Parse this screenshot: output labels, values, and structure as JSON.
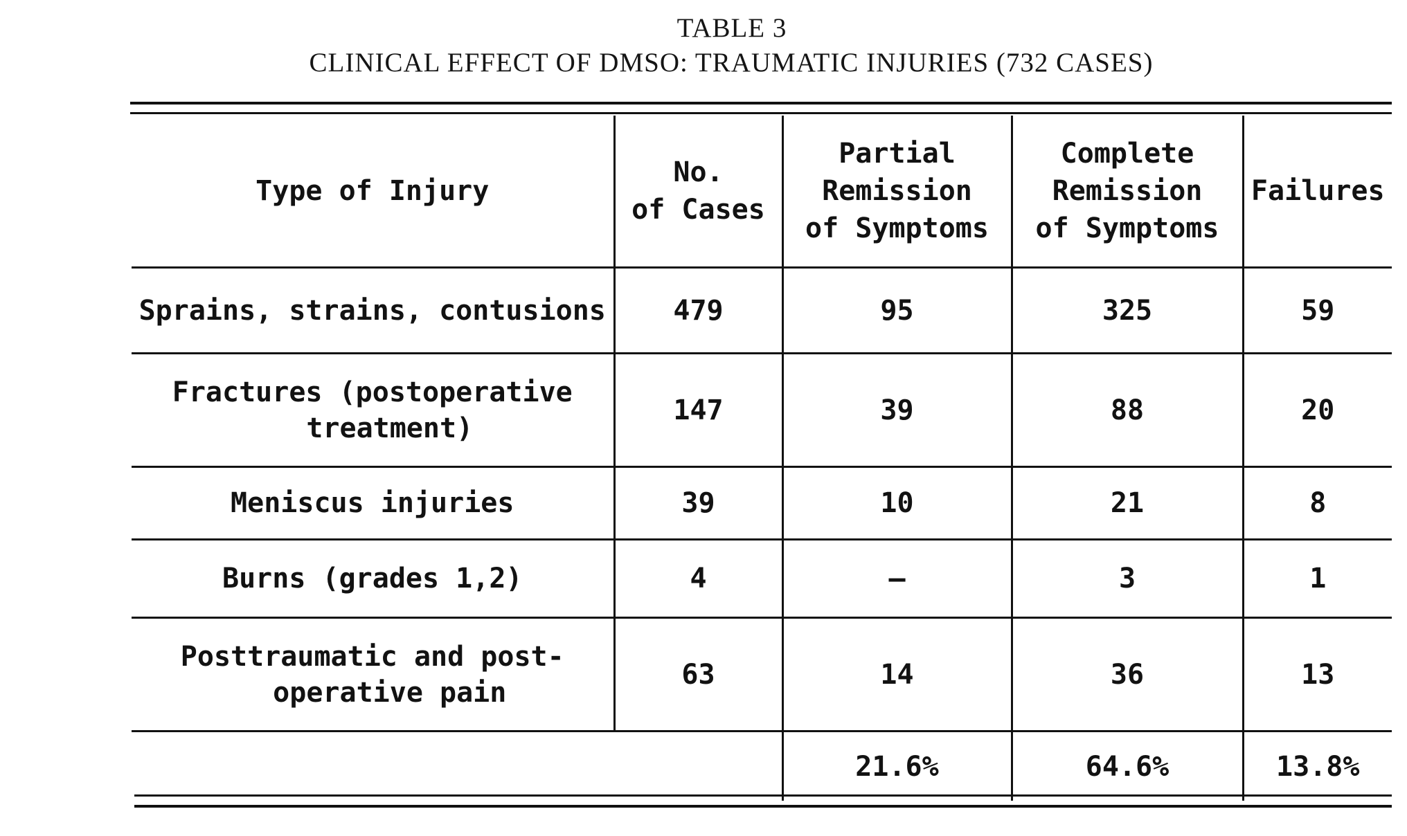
{
  "title": {
    "table_number": "TABLE 3",
    "caption": "CLINICAL EFFECT OF DMSO: TRAUMATIC INJURIES (732 CASES)"
  },
  "headers": {
    "type": "Type of Injury",
    "cases_line1": "No.",
    "cases_line2": "of Cases",
    "partial_line1": "Partial",
    "partial_line2": "Remission",
    "partial_line3": "of Symptoms",
    "complete_line1": "Complete",
    "complete_line2": "Remission",
    "complete_line3": "of Symptoms",
    "failures": "Failures"
  },
  "rows": [
    {
      "type_line1": "Sprains, strains, contusions",
      "type_line2": "",
      "cases": "479",
      "partial": "95",
      "complete": "325",
      "failures": "59"
    },
    {
      "type_line1": "Fractures (postoperative",
      "type_line2": "treatment)",
      "cases": "147",
      "partial": "39",
      "complete": "88",
      "failures": "20"
    },
    {
      "type_line1": "Meniscus injuries",
      "type_line2": "",
      "cases": "39",
      "partial": "10",
      "complete": "21",
      "failures": "8"
    },
    {
      "type_line1": "Burns (grades 1,2)",
      "type_line2": "",
      "cases": "4",
      "partial": "—",
      "complete": "3",
      "failures": "1"
    },
    {
      "type_line1": "Posttraumatic and post-",
      "type_line2": "operative pain",
      "cases": "63",
      "partial": "14",
      "complete": "36",
      "failures": "13"
    }
  ],
  "totals": {
    "partial": "21.6%",
    "complete": "64.6%",
    "failures": "13.8%"
  }
}
